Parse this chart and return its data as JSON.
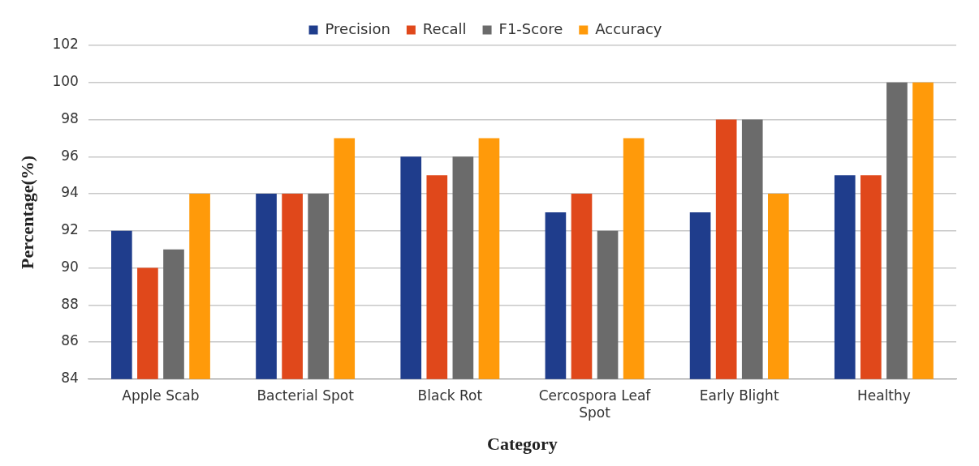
{
  "chart_data": {
    "type": "bar",
    "xlabel": "Category",
    "ylabel": "Percentage(%)",
    "categories": [
      "Apple Scab",
      "Bacterial Spot",
      "Black Rot",
      "Cercospora Leaf Spot",
      "Early Blight",
      "Healthy"
    ],
    "series": [
      {
        "name": "Precision",
        "color": "#1f3d8c",
        "values": [
          92,
          94,
          96,
          93,
          93,
          95
        ]
      },
      {
        "name": "Recall",
        "color": "#e0481b",
        "values": [
          90,
          94,
          95,
          94,
          98,
          95
        ]
      },
      {
        "name": "F1-Score",
        "color": "#6b6b6b",
        "values": [
          91,
          94,
          96,
          92,
          98,
          100
        ]
      },
      {
        "name": "Accuracy",
        "color": "#ff9a0a",
        "values": [
          94,
          97,
          97,
          97,
          94,
          100
        ]
      }
    ],
    "ylim": [
      84,
      102
    ],
    "yticks": [
      84,
      86,
      88,
      90,
      92,
      94,
      96,
      98,
      100,
      102
    ],
    "grid": "y",
    "legend": "top"
  }
}
